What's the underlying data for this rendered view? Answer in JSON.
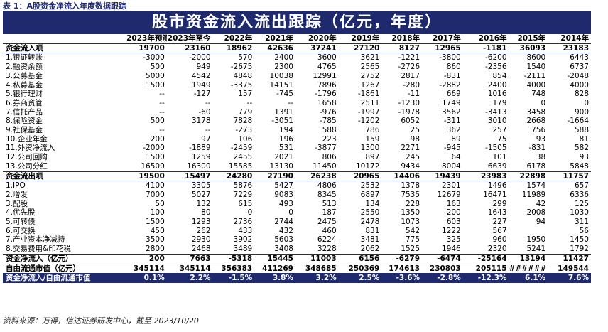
{
  "caption": "表 1：A股资金净流入年度数据跟踪",
  "table": {
    "title": "股市资金流入流出跟踪（亿元，年度）",
    "columns": [
      "2023年预测",
      "2023年至今",
      "2022年",
      "2021年",
      "2020年",
      "2019年",
      "2018年",
      "2017年",
      "2016年",
      "2015年",
      "2014年"
    ],
    "rows": [
      {
        "label": "资金流入项",
        "cells": [
          "19700",
          "23160",
          "18962",
          "42636",
          "37241",
          "27120",
          "8127",
          "12965",
          "-1181",
          "36093",
          "23183"
        ]
      },
      {
        "label": "1.银证转账",
        "cells": [
          "-3000",
          "-2000",
          "570",
          "2400",
          "3600",
          "3621",
          "-1221",
          "-3800",
          "-6200",
          "8600",
          "6443"
        ]
      },
      {
        "label": "2.融资余额",
        "cells": [
          "500",
          "949",
          "-2675",
          "2300",
          "4765",
          "2565",
          "-2726",
          "860",
          "-2356",
          "1540",
          "6737"
        ]
      },
      {
        "label": "3.公募基金",
        "cells": [
          "5000",
          "4542",
          "4848",
          "10038",
          "12991",
          "2752",
          "2817",
          "-831",
          "854",
          "-2111",
          "-2048"
        ]
      },
      {
        "label": "4.私募基金",
        "cells": [
          "1500",
          "1949",
          "-3375",
          "14151",
          "7896",
          "1267",
          "-280",
          "-2882",
          "2400",
          "4000",
          "4000"
        ]
      },
      {
        "label": "5.银行理财",
        "cells": [
          "--",
          "-127",
          "157",
          "-745",
          "-1796",
          "-1861",
          "-11",
          "669",
          "1016",
          "748",
          "828"
        ]
      },
      {
        "label": "6.券商资管",
        "cells": [
          "--",
          "--",
          "--",
          "--",
          "1658",
          "2511",
          "-1230",
          "1749",
          "179",
          "0",
          "0"
        ]
      },
      {
        "label": "7.信托产品",
        "cells": [
          "--",
          "-60",
          "779",
          "1391",
          "-976",
          "-1997",
          "-1978",
          "3562",
          "-3413",
          "3458",
          "900"
        ]
      },
      {
        "label": "8.保险资金",
        "cells": [
          "500",
          "3178",
          "7828",
          "-3051",
          "-785",
          "-1202",
          "6052",
          "-311",
          "3010",
          "2668",
          "-1664"
        ]
      },
      {
        "label": "9.社保基金",
        "cells": [
          "--",
          "--",
          "-273",
          "194",
          "588",
          "786",
          "25",
          "362",
          "257",
          "756",
          "588"
        ]
      },
      {
        "label": "10.企业年金",
        "cells": [
          "200",
          "97",
          "106",
          "196",
          "223",
          "159",
          "98",
          "89",
          "75",
          "93",
          "81"
        ]
      },
      {
        "label": "11.外资净流入",
        "cells": [
          "-2000",
          "-1889",
          "-2459",
          "531",
          "-3877",
          "1300",
          "2271",
          "-945",
          "-1505",
          "-831",
          "582"
        ]
      },
      {
        "label": "12.公司回购",
        "cells": [
          "1500",
          "1259",
          "2455",
          "2021",
          "806",
          "897",
          "245",
          "64",
          "101",
          "38",
          "93"
        ]
      },
      {
        "label": "13.公司分红",
        "cells": [
          "16500",
          "16300",
          "15585",
          "13130",
          "11450",
          "10172",
          "9434",
          "8004",
          "6639",
          "6178",
          "5848"
        ]
      },
      {
        "label": "资金流出项",
        "cells": [
          "19500",
          "15497",
          "24280",
          "27190",
          "26238",
          "20965",
          "14406",
          "19439",
          "23983",
          "22898",
          "11757"
        ]
      },
      {
        "label": "1.IPO",
        "cells": [
          "4100",
          "3305",
          "5876",
          "5427",
          "4806",
          "2532",
          "1378",
          "2301",
          "1496",
          "1574",
          "657"
        ]
      },
      {
        "label": "2.增发",
        "cells": [
          "7000",
          "5027",
          "7229",
          "9083",
          "8345",
          "6897",
          "7535",
          "12679",
          "16471",
          "11989",
          "6336"
        ]
      },
      {
        "label": "3.配股",
        "cells": [
          "50",
          "132",
          "615",
          "493",
          "513",
          "134",
          "228",
          "163",
          "299",
          "42",
          "125"
        ]
      },
      {
        "label": "4.优先股",
        "cells": [
          "100",
          "80",
          "0",
          "0",
          "187",
          "2550",
          "1350",
          "200",
          "1643",
          "2008",
          "1030"
        ]
      },
      {
        "label": "5.可转债",
        "cells": [
          "1500",
          "1293",
          "2736",
          "2744",
          "2475",
          "2478",
          "1073",
          "603",
          "227",
          "94",
          "311"
        ]
      },
      {
        "label": "6.可交换",
        "cells": [
          "450",
          "262",
          "433",
          "432",
          "460",
          "831",
          "542",
          "1222",
          "567",
          null,
          "56"
        ]
      },
      {
        "label": "7.产业资本净减持",
        "cells": [
          "3500",
          "2930",
          "3902",
          "5603",
          "6224",
          "3481",
          "775",
          "325",
          "960",
          "1950",
          "1450"
        ]
      },
      {
        "label": "8.交易费用&印花税",
        "cells": [
          "2800",
          "2468",
          "3489",
          "3408",
          "3228",
          "2062",
          "1525",
          "1946",
          "2320",
          "5241",
          "1792"
        ]
      },
      {
        "label": "资金净流入（亿元）",
        "cells": [
          "200",
          "7663",
          "-5318",
          "15445",
          "11003",
          "6156",
          "-6279",
          "-6474",
          "-25164",
          "13194",
          "11427"
        ]
      },
      {
        "label": "自由流通市值（亿元）",
        "cells": [
          "345114",
          "345114",
          "356383",
          "411269",
          "348685",
          "250369",
          "174613",
          "230803",
          "205115",
          "######",
          "149544"
        ]
      },
      {
        "label": "资金净流入/自由流通市值",
        "cells": [
          "0.1%",
          "2.2%",
          "-1.5%",
          "3.8%",
          "3.2%",
          "2.5%",
          "-3.6%",
          "-2.8%",
          "-12.3%",
          "6.1%",
          "7.6%"
        ]
      }
    ]
  },
  "source": "资料来源：万得，信达证券研发中心，截至 2023/10/20"
}
